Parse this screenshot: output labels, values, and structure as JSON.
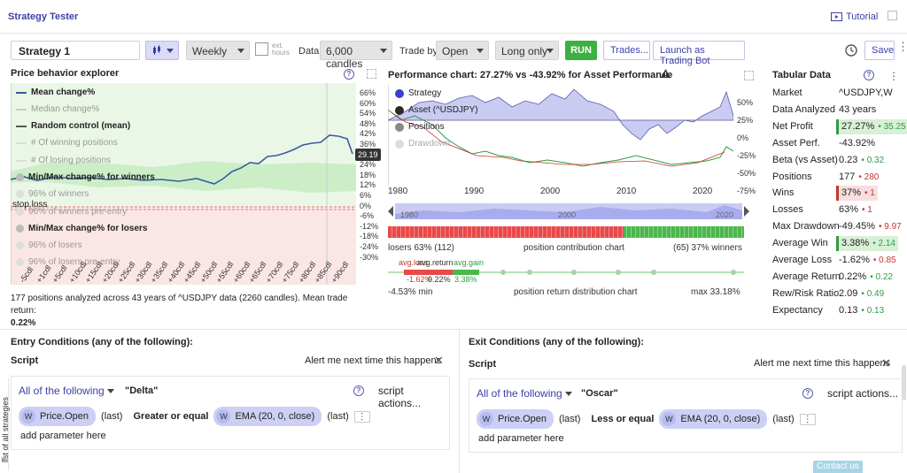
{
  "app": {
    "title": "Strategy Tester",
    "tutorial": "Tutorial"
  },
  "toolbar": {
    "strategy_name": "Strategy 1",
    "interval": "Weekly",
    "ext_hours": "ext. hours",
    "data_label": "Data",
    "candles": "6,000 candles",
    "trade_by_label": "Trade by",
    "trade_by": "Open",
    "direction": "Long only",
    "run": "RUN",
    "trades": "Trades...",
    "launch": "Launch as Trading Bot",
    "save": "Save"
  },
  "behavior": {
    "title": "Price behavior explorer",
    "legend": [
      "Mean change%",
      "Median change%",
      "Random control (mean)",
      "# Of winning positions",
      "# Of losing positions",
      "Min/Max change% for winners",
      "96% of winners",
      "stop.loss",
      "96% of winners pre-entry",
      "Min/Max change% for losers",
      "96% of losers",
      "96% of losers pre-entry"
    ],
    "right_labels": [
      "66%",
      "60%",
      "54%",
      "48%",
      "42%",
      "36%",
      "30%",
      "24%",
      "18%",
      "12%",
      "6%",
      "0%",
      "-6%",
      "-12%",
      "-18%",
      "-24%",
      "-30%"
    ],
    "current": "29.19",
    "x_labels": [
      "-5cdl",
      "+1cdl",
      "+5cdl",
      "+10cdl",
      "+15cdl",
      "+20cdl",
      "+25cdl",
      "+30cdl",
      "+35cdl",
      "+40cdl",
      "+45cdl",
      "+50cdl",
      "+55cdl",
      "+60cdl",
      "+65cdl",
      "+70cdl",
      "+75cdl",
      "+80cdl",
      "+85cdl",
      "+90cdl"
    ],
    "summary": "177 positions analyzed across 43 years of ^USDJPY data (2260 candles). Mean trade return:",
    "mean_return": "0.22%"
  },
  "performance": {
    "title": "Performance chart: 27.27% vs -43.92% for Asset Performance",
    "legend": [
      "Strategy",
      "Asset (^USDJPY)",
      "Positions",
      "Drawdown"
    ],
    "right_labels": [
      "50%",
      "25%",
      "0%",
      "-25%",
      "-50%",
      "-75%"
    ],
    "years": [
      "1980",
      "1990",
      "2000",
      "2010",
      "2020"
    ],
    "nav_years": [
      "1980",
      "2000",
      "2020"
    ],
    "losers": "losers 63% (112)",
    "contribution": "position contribution chart",
    "winners": "(65) 37% winners",
    "avg_loss": "avg.loss",
    "avg_return": "avg.return",
    "avg_gain": "avg.gain",
    "v_loss": "-1.62%",
    "v_ret": "0.22%",
    "v_gain": "3.38%",
    "min": "-4.53% min",
    "dist": "position return distribution chart",
    "max": "max 33.18%"
  },
  "tabular": {
    "title": "Tabular Data",
    "rows": [
      {
        "k": "Market",
        "v": "^USDJPY,W",
        "c": ""
      },
      {
        "k": "Data Analyzed",
        "v": "43 years",
        "c": ""
      },
      {
        "k": "Net Profit",
        "v": "27.27%",
        "c": "• 35.25",
        "hl": "g"
      },
      {
        "k": "Asset Perf.",
        "v": "-43.92%",
        "c": ""
      },
      {
        "k": "Beta (vs Asset)",
        "v": "0.23",
        "c": "• 0.32",
        "d": "up"
      },
      {
        "k": "Positions",
        "v": "177",
        "c": "• 280",
        "d": "dn"
      },
      {
        "k": "Wins",
        "v": "37%",
        "c": "• 1",
        "hl": "r",
        "d": "dn"
      },
      {
        "k": "Losses",
        "v": "63%",
        "c": "• 1",
        "d": "dn"
      },
      {
        "k": "Max Drawdown",
        "v": "-49.45%",
        "c": "• 9.97",
        "d": "dn"
      },
      {
        "k": "Average Win",
        "v": "3.38%",
        "c": "• 2.14",
        "hl": "g",
        "d": "up"
      },
      {
        "k": "Average Loss",
        "v": "-1.62%",
        "c": "• 0.85",
        "d": "dn"
      },
      {
        "k": "Average Return",
        "v": "0.22%",
        "c": "• 0.22",
        "d": "up"
      },
      {
        "k": "Rew/Risk Ratio",
        "v": "2.09",
        "c": "• 0.49",
        "d": "up"
      },
      {
        "k": "Expectancy",
        "v": "0.13",
        "c": "• 0.13",
        "d": "up"
      }
    ]
  },
  "entry": {
    "title": "Entry Conditions (any of the following):",
    "script": "Script",
    "alert": "Alert me next time this happens",
    "mode": "All of the following",
    "name": "\"Delta\"",
    "actions": "script actions...",
    "left": "Price.Open",
    "left_arg": "(last)",
    "op": "Greater or equal",
    "right": "EMA (20, 0, close)",
    "right_arg": "(last)",
    "add": "add parameter here",
    "w": "W"
  },
  "exit": {
    "title": "Exit Conditions (any of the following):",
    "script": "Script",
    "alert": "Alert me next time this happens",
    "mode": "All of the following",
    "name": "\"Oscar\"",
    "actions": "script actions...",
    "left": "Price.Open",
    "left_arg": "(last)",
    "op": "Less or equal",
    "right": "EMA (20, 0, close)",
    "right_arg": "(last)",
    "add": "add parameter here",
    "w": "W"
  },
  "sidebar": {
    "label": "list of all strategies"
  },
  "contact": "Contact us"
}
